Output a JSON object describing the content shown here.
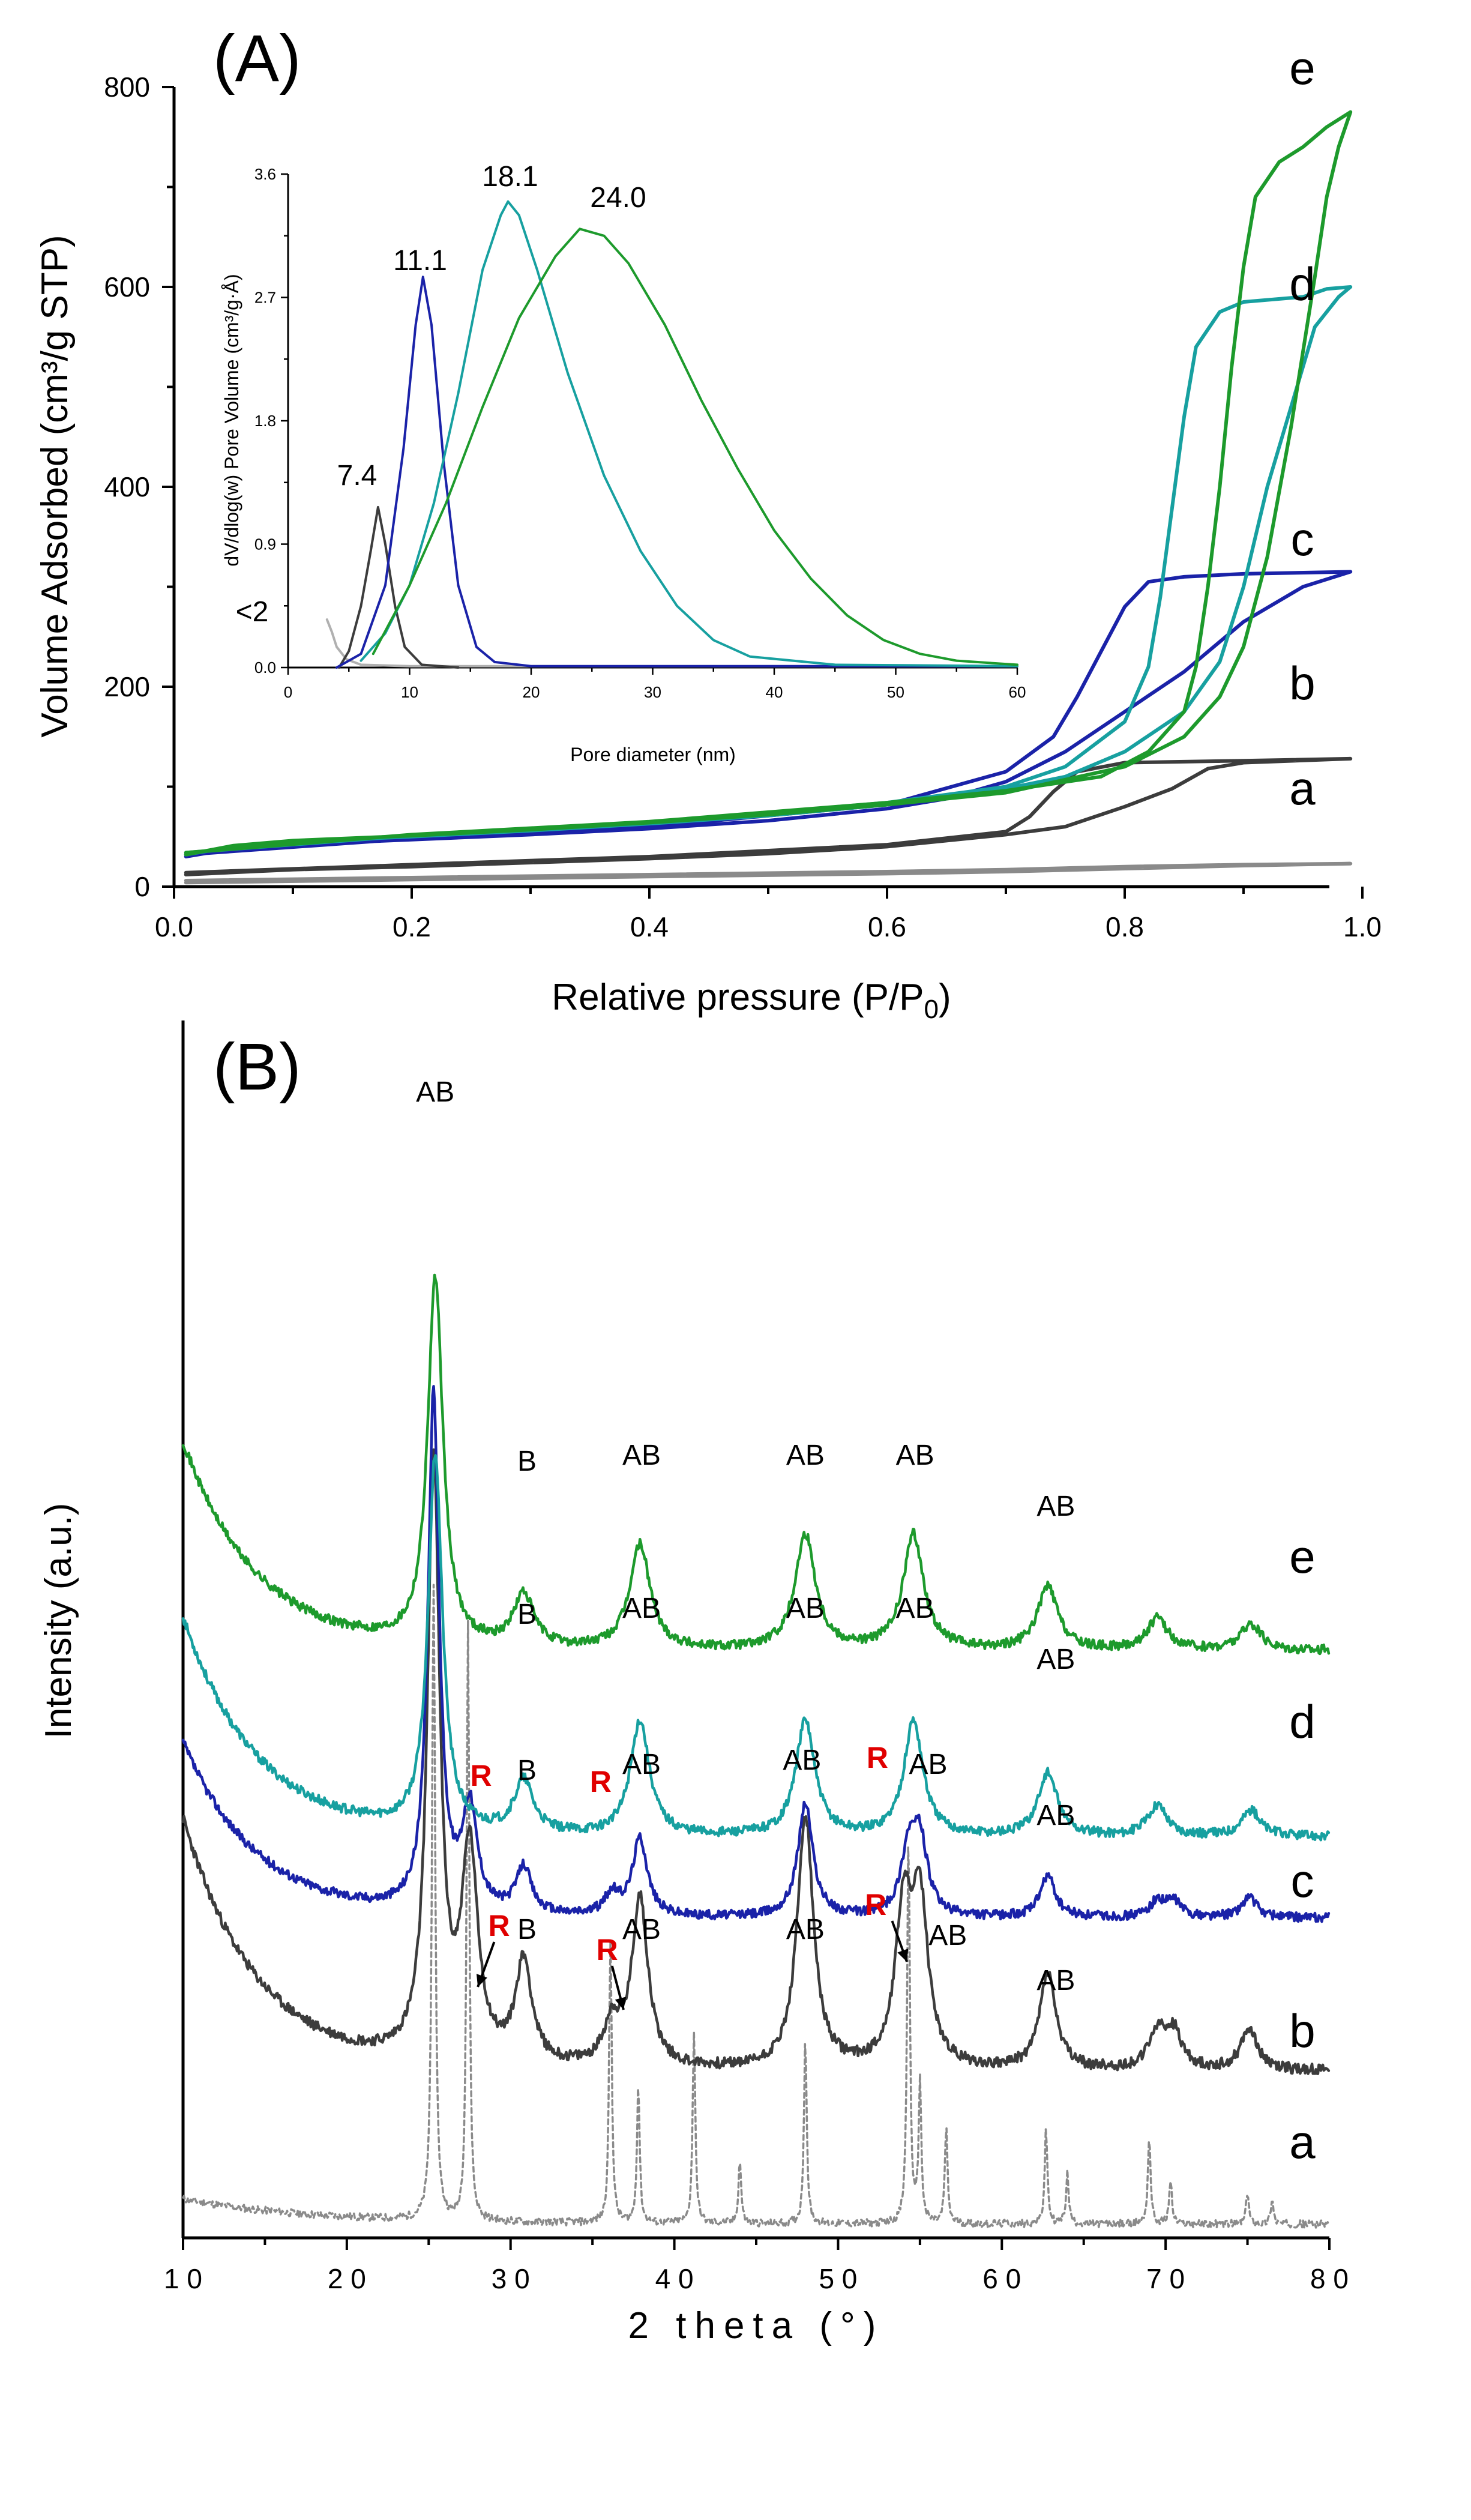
{
  "chart_data": [
    {
      "type": "line",
      "panel": "(A)",
      "title": "",
      "xlabel": "Relative pressure (P/P₀)",
      "xlabel_main": "Relative pressure (P/P",
      "xlabel_sub": "0",
      "xlabel_end": ")",
      "ylabel": "Volume Adsorbed (cm³/g STP)",
      "xlim": [
        0.0,
        1.0
      ],
      "ylim": [
        0,
        800
      ],
      "xticks": [
        "0.0",
        "0.2",
        "0.4",
        "0.6",
        "0.8",
        "1.0"
      ],
      "yticks": [
        "0",
        "200",
        "400",
        "600",
        "800"
      ],
      "series": [
        {
          "name": "a",
          "color": "#8a8a8a",
          "ads": [
            [
              0.01,
              4
            ],
            [
              0.2,
              7
            ],
            [
              0.4,
              10
            ],
            [
              0.6,
              13
            ],
            [
              0.7,
              15
            ],
            [
              0.8,
              18
            ],
            [
              0.9,
              21
            ],
            [
              0.99,
              23
            ]
          ],
          "des": [
            [
              0.99,
              23
            ],
            [
              0.9,
              22
            ],
            [
              0.8,
              20
            ],
            [
              0.7,
              17
            ],
            [
              0.6,
              15
            ],
            [
              0.4,
              12
            ],
            [
              0.2,
              9
            ],
            [
              0.01,
              6
            ]
          ]
        },
        {
          "name": "b",
          "color": "#3c3c3c",
          "ads": [
            [
              0.01,
              12
            ],
            [
              0.1,
              17
            ],
            [
              0.2,
              20
            ],
            [
              0.3,
              24
            ],
            [
              0.4,
              28
            ],
            [
              0.5,
              33
            ],
            [
              0.6,
              40
            ],
            [
              0.7,
              52
            ],
            [
              0.75,
              60
            ],
            [
              0.8,
              80
            ],
            [
              0.84,
              98
            ],
            [
              0.87,
              118
            ],
            [
              0.9,
              124
            ],
            [
              0.99,
              128
            ]
          ],
          "des": [
            [
              0.99,
              128
            ],
            [
              0.9,
              126
            ],
            [
              0.8,
              124
            ],
            [
              0.76,
              115
            ],
            [
              0.74,
              95
            ],
            [
              0.72,
              70
            ],
            [
              0.7,
              55
            ],
            [
              0.6,
              42
            ],
            [
              0.4,
              30
            ],
            [
              0.2,
              22
            ],
            [
              0.01,
              14
            ]
          ]
        },
        {
          "name": "c",
          "color": "#1a22a8",
          "ads": [
            [
              0.01,
              30
            ],
            [
              0.05,
              38
            ],
            [
              0.1,
              42
            ],
            [
              0.2,
              47
            ],
            [
              0.3,
              52
            ],
            [
              0.4,
              58
            ],
            [
              0.5,
              66
            ],
            [
              0.6,
              78
            ],
            [
              0.65,
              88
            ],
            [
              0.7,
              105
            ],
            [
              0.75,
              135
            ],
            [
              0.8,
              175
            ],
            [
              0.85,
              215
            ],
            [
              0.9,
              265
            ],
            [
              0.95,
              300
            ],
            [
              0.99,
              315
            ]
          ],
          "des": [
            [
              0.99,
              315
            ],
            [
              0.9,
              313
            ],
            [
              0.85,
              310
            ],
            [
              0.82,
              305
            ],
            [
              0.8,
              280
            ],
            [
              0.78,
              235
            ],
            [
              0.76,
              190
            ],
            [
              0.74,
              150
            ],
            [
              0.7,
              115
            ],
            [
              0.6,
              82
            ],
            [
              0.4,
              60
            ],
            [
              0.2,
              48
            ],
            [
              0.01,
              32
            ]
          ]
        },
        {
          "name": "d",
          "color": "#17a0a0",
          "ads": [
            [
              0.01,
              32
            ],
            [
              0.05,
              40
            ],
            [
              0.1,
              45
            ],
            [
              0.2,
              50
            ],
            [
              0.3,
              56
            ],
            [
              0.4,
              63
            ],
            [
              0.5,
              71
            ],
            [
              0.6,
              82
            ],
            [
              0.7,
              98
            ],
            [
              0.75,
              110
            ],
            [
              0.8,
              135
            ],
            [
              0.85,
              175
            ],
            [
              0.88,
              225
            ],
            [
              0.9,
              300
            ],
            [
              0.92,
              400
            ],
            [
              0.94,
              480
            ],
            [
              0.96,
              560
            ],
            [
              0.98,
              590
            ],
            [
              0.99,
              600
            ]
          ],
          "des": [
            [
              0.99,
              600
            ],
            [
              0.97,
              598
            ],
            [
              0.95,
              590
            ],
            [
              0.9,
              585
            ],
            [
              0.88,
              575
            ],
            [
              0.86,
              540
            ],
            [
              0.85,
              470
            ],
            [
              0.84,
              380
            ],
            [
              0.83,
              290
            ],
            [
              0.82,
              220
            ],
            [
              0.8,
              165
            ],
            [
              0.75,
              120
            ],
            [
              0.7,
              100
            ],
            [
              0.6,
              84
            ],
            [
              0.4,
              64
            ],
            [
              0.2,
              51
            ],
            [
              0.01,
              34
            ]
          ]
        },
        {
          "name": "e",
          "color": "#1d9a2c",
          "ads": [
            [
              0.01,
              32
            ],
            [
              0.05,
              41
            ],
            [
              0.1,
              46
            ],
            [
              0.2,
              51
            ],
            [
              0.3,
              57
            ],
            [
              0.4,
              64
            ],
            [
              0.5,
              72
            ],
            [
              0.6,
              82
            ],
            [
              0.7,
              94
            ],
            [
              0.8,
              120
            ],
            [
              0.85,
              150
            ],
            [
              0.88,
              190
            ],
            [
              0.9,
              240
            ],
            [
              0.92,
              330
            ],
            [
              0.94,
              460
            ],
            [
              0.96,
              610
            ],
            [
              0.97,
              690
            ],
            [
              0.98,
              740
            ],
            [
              0.99,
              775
            ]
          ],
          "des": [
            [
              0.99,
              775
            ],
            [
              0.97,
              760
            ],
            [
              0.95,
              740
            ],
            [
              0.93,
              725
            ],
            [
              0.91,
              690
            ],
            [
              0.9,
              620
            ],
            [
              0.89,
              520
            ],
            [
              0.88,
              400
            ],
            [
              0.87,
              300
            ],
            [
              0.86,
              220
            ],
            [
              0.85,
              175
            ],
            [
              0.82,
              135
            ],
            [
              0.78,
              110
            ],
            [
              0.7,
              96
            ],
            [
              0.6,
              84
            ],
            [
              0.4,
              65
            ],
            [
              0.2,
              52
            ],
            [
              0.01,
              34
            ]
          ]
        }
      ],
      "curve_labels": [
        "a",
        "b",
        "c",
        "d",
        "e"
      ],
      "inset": {
        "xlabel": "Pore diameter (nm)",
        "ylabel": "dV/dlog(w) Pore Volume (cm³/g·Å)",
        "xlim": [
          0,
          60
        ],
        "ylim": [
          0,
          3.6
        ],
        "xticks": [
          "0",
          "10",
          "20",
          "30",
          "40",
          "50",
          "60"
        ],
        "yticks": [
          "0.0",
          "0.9",
          "1.8",
          "2.7",
          "3.6"
        ],
        "series": [
          {
            "name": "<2",
            "color": "#b0b0b0",
            "points": [
              [
                3.2,
                0.35
              ],
              [
                3.6,
                0.26
              ],
              [
                4,
                0.15
              ],
              [
                4.8,
                0.06
              ],
              [
                6,
                0.02
              ],
              [
                10,
                0.01
              ],
              [
                60,
                0.01
              ]
            ]
          },
          {
            "name": "7.4",
            "color": "#3c3c3c",
            "points": [
              [
                4.2,
                0
              ],
              [
                5,
                0.12
              ],
              [
                6,
                0.45
              ],
              [
                6.8,
                0.85
              ],
              [
                7.4,
                1.17
              ],
              [
                8,
                0.9
              ],
              [
                8.8,
                0.45
              ],
              [
                9.6,
                0.15
              ],
              [
                11,
                0.02
              ],
              [
                14,
                0
              ]
            ]
          },
          {
            "name": "11.1",
            "color": "#1a22a8",
            "points": [
              [
                4,
                0
              ],
              [
                6,
                0.1
              ],
              [
                8,
                0.6
              ],
              [
                9.5,
                1.6
              ],
              [
                10.5,
                2.5
              ],
              [
                11.1,
                2.85
              ],
              [
                11.8,
                2.5
              ],
              [
                12.8,
                1.5
              ],
              [
                14,
                0.6
              ],
              [
                15.5,
                0.15
              ],
              [
                17,
                0.04
              ],
              [
                20,
                0.01
              ],
              [
                60,
                0.01
              ]
            ]
          },
          {
            "name": "18.1",
            "color": "#17a0a0",
            "points": [
              [
                6,
                0.05
              ],
              [
                8,
                0.25
              ],
              [
                10,
                0.6
              ],
              [
                12,
                1.2
              ],
              [
                14,
                2.0
              ],
              [
                16,
                2.9
              ],
              [
                17.5,
                3.3
              ],
              [
                18.1,
                3.4
              ],
              [
                19,
                3.3
              ],
              [
                20.5,
                2.9
              ],
              [
                23,
                2.15
              ],
              [
                26,
                1.4
              ],
              [
                29,
                0.85
              ],
              [
                32,
                0.45
              ],
              [
                35,
                0.2
              ],
              [
                38,
                0.08
              ],
              [
                45,
                0.02
              ],
              [
                60,
                0.01
              ]
            ]
          },
          {
            "name": "24.0",
            "color": "#1d9a2c",
            "points": [
              [
                7,
                0.1
              ],
              [
                10,
                0.6
              ],
              [
                13,
                1.2
              ],
              [
                16,
                1.9
              ],
              [
                19,
                2.55
              ],
              [
                22,
                3.0
              ],
              [
                24,
                3.2
              ],
              [
                26,
                3.15
              ],
              [
                28,
                2.95
              ],
              [
                31,
                2.5
              ],
              [
                34,
                1.95
              ],
              [
                37,
                1.45
              ],
              [
                40,
                1.0
              ],
              [
                43,
                0.65
              ],
              [
                46,
                0.38
              ],
              [
                49,
                0.2
              ],
              [
                52,
                0.1
              ],
              [
                55,
                0.05
              ],
              [
                60,
                0.02
              ]
            ]
          }
        ],
        "peak_labels": [
          "<2",
          "7.4",
          "11.1",
          "18.1",
          "24.0"
        ]
      }
    },
    {
      "type": "line",
      "panel": "(B)",
      "title": "",
      "xlabel": "2 theta (°)",
      "ylabel": "Intensity (a.u.)",
      "xlim": [
        10,
        80
      ],
      "xticks": [
        "10",
        "20",
        "30",
        "40",
        "50",
        "60",
        "70",
        "80"
      ],
      "series_names": [
        "a",
        "b",
        "c",
        "d",
        "e"
      ],
      "annotations": {
        "AB": "AB",
        "B": "B",
        "R": "R"
      }
    }
  ]
}
